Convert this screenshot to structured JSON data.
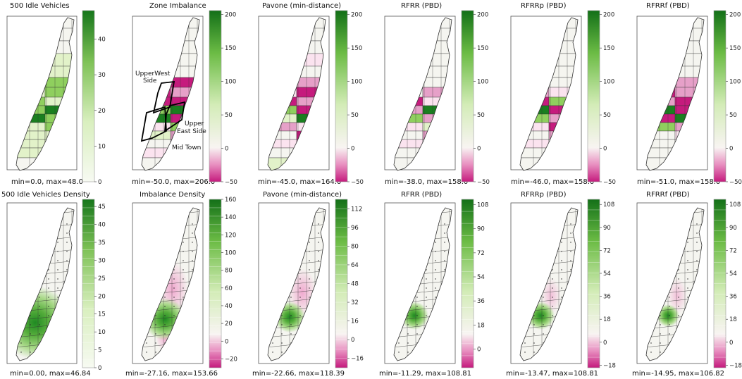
{
  "figure": "NYC Manhattan zone heatmaps",
  "colors": {
    "neg_strong": "#c51b7d",
    "neg_mid": "#e6a0c8",
    "neg_light": "#fbe3ef",
    "neutral": "#f5f5f0",
    "pos_light": "#e2f2c9",
    "pos_mid": "#8fcf5e",
    "pos_strong": "#1a7f1f",
    "border": "#333333"
  },
  "rows": [
    {
      "row": "zones",
      "panels": [
        {
          "id": "p1",
          "title": "500 Idle Vehicles",
          "range_text": "min=0.0, max=48.0",
          "colorbar": {
            "min": 0,
            "max": 48,
            "ticks": [
              "40",
              "30",
              "20",
              "10",
              "0"
            ],
            "tick_values": [
              40,
              30,
              20,
              10,
              0
            ]
          },
          "annotations": []
        },
        {
          "id": "p2",
          "title": "Zone Imbalance",
          "range_text": "min=-50.0, max=206.0",
          "colorbar": {
            "min": -50,
            "max": 206,
            "ticks": [
              "200",
              "150",
              "100",
              "50",
              "0",
              "−50"
            ],
            "tick_values": [
              200,
              150,
              100,
              50,
              0,
              -50
            ]
          },
          "annotations": [
            "UpperWest",
            "Side",
            "Upper",
            "East Side",
            "Mid Town"
          ]
        },
        {
          "id": "p3",
          "title": "Pavone (min-distance)",
          "range_text": "min=-45.0, max=164.0",
          "colorbar": {
            "min": -50,
            "max": 206,
            "ticks": [
              "200",
              "150",
              "100",
              "50",
              "0",
              "−50"
            ],
            "tick_values": [
              200,
              150,
              100,
              50,
              0,
              -50
            ]
          },
          "annotations": []
        },
        {
          "id": "p4",
          "title": "RFRR (PBD)",
          "range_text": "min=-38.0, max=158.0",
          "colorbar": {
            "min": -50,
            "max": 206,
            "ticks": [
              "200",
              "150",
              "100",
              "50",
              "0",
              "−50"
            ],
            "tick_values": [
              200,
              150,
              100,
              50,
              0,
              -50
            ]
          },
          "annotations": []
        },
        {
          "id": "p5",
          "title": "RFRRp (PBD)",
          "range_text": "min=-46.0, max=158.0",
          "colorbar": {
            "min": -50,
            "max": 206,
            "ticks": [
              "200",
              "150",
              "100",
              "50",
              "0",
              "−50"
            ],
            "tick_values": [
              200,
              150,
              100,
              50,
              0,
              -50
            ]
          },
          "annotations": []
        },
        {
          "id": "p6",
          "title": "RFRRf (PBD)",
          "range_text": "min=-51.0, max=158.0",
          "colorbar": {
            "min": -50,
            "max": 206,
            "ticks": [
              "200",
              "150",
              "100",
              "50",
              "0",
              "−50"
            ],
            "tick_values": [
              200,
              150,
              100,
              50,
              0,
              -50
            ]
          },
          "annotations": []
        }
      ]
    },
    {
      "row": "density",
      "panels": [
        {
          "id": "d1",
          "title": "500 Idle Vehicles Density",
          "range_text": "min=0.00, max=46.84",
          "colorbar": {
            "min": 0,
            "max": 47,
            "ticks": [
              "45",
              "40",
              "35",
              "30",
              "25",
              "20",
              "15",
              "10",
              "5",
              "0"
            ],
            "tick_values": [
              45,
              40,
              35,
              30,
              25,
              20,
              15,
              10,
              5,
              0
            ]
          },
          "annotations": []
        },
        {
          "id": "d2",
          "title": "Imbalance Density",
          "range_text": "min=-27.16, max=153.66",
          "colorbar": {
            "min": -30,
            "max": 160,
            "ticks": [
              "160",
              "140",
              "120",
              "100",
              "80",
              "60",
              "40",
              "20",
              "0",
              "−20"
            ],
            "tick_values": [
              160,
              140,
              120,
              100,
              80,
              60,
              40,
              20,
              0,
              -20
            ]
          },
          "annotations": []
        },
        {
          "id": "d3",
          "title": "Pavone (min-distance)",
          "range_text": "min=-22.66, max=118.39",
          "colorbar": {
            "min": -24,
            "max": 120,
            "ticks": [
              "112",
              "96",
              "80",
              "64",
              "48",
              "32",
              "16",
              "0",
              "−16"
            ],
            "tick_values": [
              112,
              96,
              80,
              64,
              48,
              32,
              16,
              0,
              -16
            ]
          },
          "annotations": []
        },
        {
          "id": "d4",
          "title": "RFRR (PBD)",
          "range_text": "min=-11.29, max=108.81",
          "colorbar": {
            "min": -14,
            "max": 112,
            "ticks": [
              "108",
              "90",
              "72",
              "54",
              "36",
              "18",
              "0"
            ],
            "tick_values": [
              108,
              90,
              72,
              54,
              36,
              18,
              0
            ]
          },
          "annotations": []
        },
        {
          "id": "d5",
          "title": "RFRRp (PBD)",
          "range_text": "min=-13.47, max=108.81",
          "colorbar": {
            "min": -20,
            "max": 112,
            "ticks": [
              "108",
              "90",
              "72",
              "54",
              "36",
              "18",
              "0",
              "−18"
            ],
            "tick_values": [
              108,
              90,
              72,
              54,
              36,
              18,
              0,
              -18
            ]
          },
          "annotations": []
        },
        {
          "id": "d6",
          "title": "RFRRf (PBD)",
          "range_text": "min=-14.95, max=106.82",
          "colorbar": {
            "min": -20,
            "max": 112,
            "ticks": [
              "108",
              "90",
              "72",
              "54",
              "36",
              "18",
              "0",
              "−18"
            ],
            "tick_values": [
              108,
              90,
              72,
              54,
              36,
              18,
              0,
              -18
            ]
          },
          "annotations": []
        }
      ]
    }
  ]
}
